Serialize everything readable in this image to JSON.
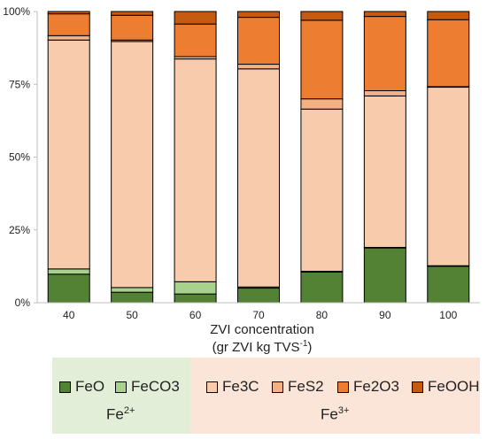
{
  "chart_data": {
    "type": "bar",
    "stacked": true,
    "title": "",
    "xlabel": "ZVI concentration",
    "xlabel_line2_prefix": "(gr ZVI kg TVS",
    "xlabel_line2_sup": "-1",
    "xlabel_line2_suffix": ")",
    "ylabel": "",
    "ylim": [
      0,
      100
    ],
    "yticks": [
      0,
      25,
      50,
      75,
      100
    ],
    "ytick_labels": [
      "0%",
      "25%",
      "50%",
      "75%",
      "100%"
    ],
    "categories": [
      "40",
      "50",
      "60",
      "70",
      "80",
      "90",
      "100"
    ],
    "grid": false,
    "legend_position": "bottom",
    "series": [
      {
        "name": "FeO",
        "color": "#548235",
        "values": [
          9.8,
          3.6,
          3.0,
          5.0,
          10.5,
          18.8,
          12.5
        ]
      },
      {
        "name": "FeCO3",
        "color": "#a9d18e",
        "values": [
          1.8,
          1.6,
          4.2,
          0.4,
          0.3,
          0.2,
          0.2
        ]
      },
      {
        "name": "Fe3C",
        "color": "#f8cbad",
        "values": [
          78.6,
          84.5,
          76.5,
          74.9,
          55.7,
          52.0,
          61.3
        ]
      },
      {
        "name": "FeS2",
        "color": "#f4b183",
        "values": [
          1.5,
          0.5,
          0.8,
          1.6,
          3.5,
          1.8,
          0.2
        ]
      },
      {
        "name": "Fe2O3",
        "color": "#ed7d31",
        "values": [
          7.5,
          8.5,
          11.2,
          16.1,
          27.0,
          25.5,
          23.0
        ]
      },
      {
        "name": "FeOOH",
        "color": "#c55a11",
        "values": [
          0.8,
          1.3,
          4.3,
          2.0,
          3.0,
          1.7,
          2.8
        ]
      }
    ]
  },
  "legend": {
    "items": [
      {
        "label": "FeO",
        "color": "#548235"
      },
      {
        "label": "FeCO3",
        "color": "#a9d18e"
      },
      {
        "label": "Fe3C",
        "color": "#f8cbad"
      },
      {
        "label": "FeS2",
        "color": "#f4b183"
      },
      {
        "label": "Fe2O3",
        "color": "#ed7d31"
      },
      {
        "label": "FeOOH",
        "color": "#c55a11"
      }
    ],
    "group_fe2_base": "Fe",
    "group_fe2_sup": "2+",
    "group_fe3_base": "Fe",
    "group_fe3_sup": "3+",
    "fe2_background": "#e2eed8",
    "fe3_background": "#fbe5d8"
  }
}
